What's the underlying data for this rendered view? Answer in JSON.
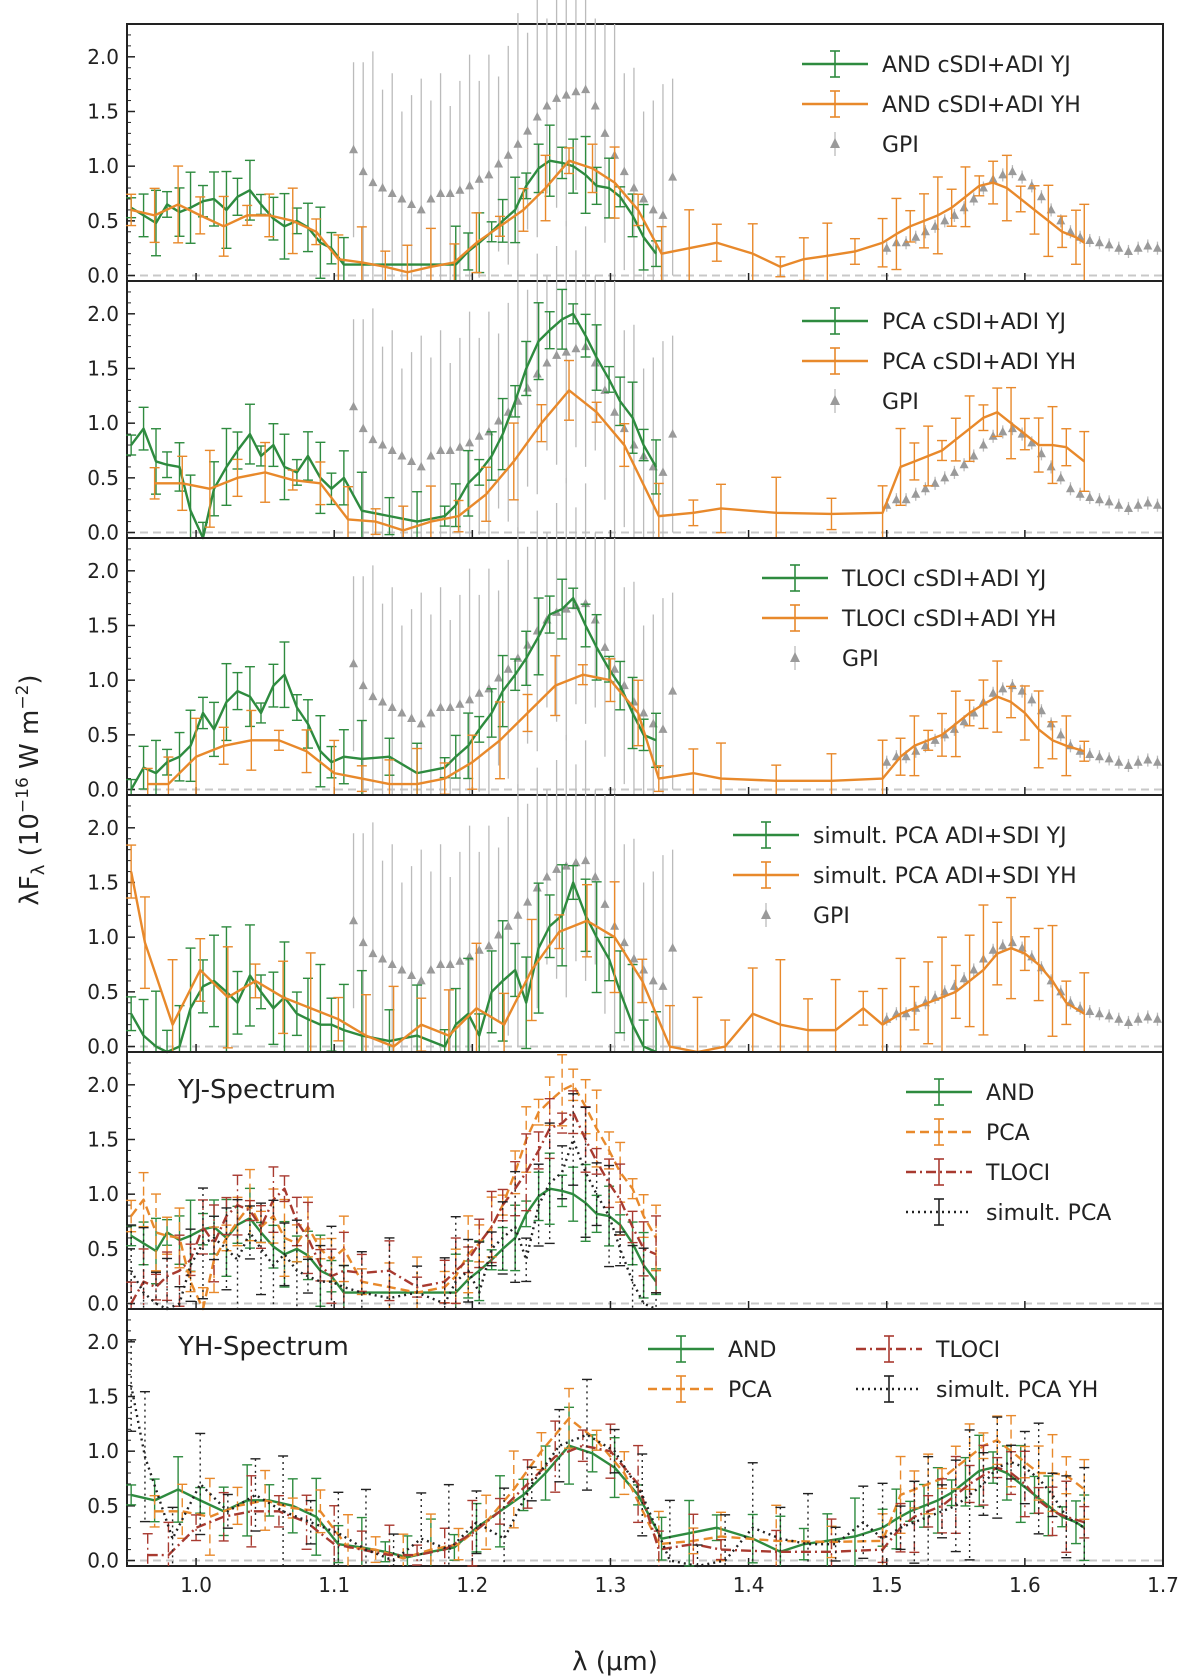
{
  "figure": {
    "xlabel": "λ (μm)",
    "ylabel": "λF_λ (10^-16 W m^-2)",
    "xlim": [
      0.95,
      1.7
    ],
    "ylim": [
      -0.05,
      2.3
    ],
    "xticks": [
      "1.0",
      "1.1",
      "1.2",
      "1.3",
      "1.4",
      "1.5",
      "1.6",
      "1.7"
    ],
    "yticks": [
      "0.0",
      "0.5",
      "1.0",
      "1.5",
      "2.0"
    ]
  },
  "colors": {
    "green": "#2e8b3f",
    "orange": "#e8892b",
    "gray": "#999999",
    "red": "#a83a30",
    "black": "#222222"
  },
  "chart_data": [
    {
      "type": "line",
      "panel": 1,
      "title": "",
      "legend_position": "top-right",
      "series": [
        {
          "name": "AND cSDI+ADI YJ",
          "color": "green",
          "style": "solid",
          "x": [
            0.953,
            0.962,
            0.971,
            0.979,
            0.988,
            0.996,
            1.005,
            1.013,
            1.022,
            1.03,
            1.039,
            1.047,
            1.056,
            1.064,
            1.073,
            1.081,
            1.09,
            1.098,
            1.107,
            1.188,
            1.197,
            1.205,
            1.214,
            1.222,
            1.231,
            1.239,
            1.248,
            1.256,
            1.265,
            1.273,
            1.282,
            1.29,
            1.299,
            1.307,
            1.316,
            1.324,
            1.333
          ],
          "y": [
            0.62,
            0.55,
            0.48,
            0.65,
            0.58,
            0.62,
            0.68,
            0.7,
            0.6,
            0.72,
            0.78,
            0.65,
            0.52,
            0.45,
            0.5,
            0.44,
            0.3,
            0.25,
            0.1,
            0.1,
            0.22,
            0.3,
            0.4,
            0.5,
            0.6,
            0.82,
            0.98,
            1.05,
            1.03,
            1.0,
            0.92,
            0.82,
            0.8,
            0.72,
            0.55,
            0.35,
            0.2
          ]
        },
        {
          "name": "AND cSDI+ADI YH",
          "color": "orange",
          "style": "solid",
          "x": [
            0.953,
            0.97,
            0.987,
            1.003,
            1.02,
            1.037,
            1.053,
            1.07,
            1.087,
            1.103,
            1.12,
            1.137,
            1.153,
            1.17,
            1.187,
            1.203,
            1.22,
            1.237,
            1.253,
            1.27,
            1.287,
            1.303,
            1.32,
            1.337,
            1.357,
            1.377,
            1.403,
            1.423,
            1.44,
            1.457,
            1.477,
            1.497,
            1.507,
            1.517,
            1.527,
            1.537,
            1.547,
            1.557,
            1.567,
            1.577,
            1.587,
            1.597,
            1.607,
            1.617,
            1.627,
            1.637,
            1.643
          ],
          "y": [
            0.6,
            0.55,
            0.65,
            0.55,
            0.45,
            0.55,
            0.55,
            0.5,
            0.4,
            0.15,
            0.12,
            0.08,
            0.03,
            0.08,
            0.12,
            0.3,
            0.45,
            0.6,
            0.8,
            1.05,
            0.98,
            0.85,
            0.6,
            0.2,
            0.25,
            0.3,
            0.2,
            0.08,
            0.15,
            0.18,
            0.22,
            0.3,
            0.38,
            0.45,
            0.5,
            0.55,
            0.62,
            0.72,
            0.82,
            0.85,
            0.8,
            0.7,
            0.6,
            0.5,
            0.4,
            0.35,
            0.3
          ]
        },
        {
          "name": "GPI",
          "color": "gray",
          "style": "marker",
          "x": [
            1.114,
            1.121,
            1.128,
            1.135,
            1.142,
            1.149,
            1.156,
            1.163,
            1.17,
            1.177,
            1.184,
            1.191,
            1.198,
            1.205,
            1.212,
            1.219,
            1.226,
            1.233,
            1.24,
            1.247,
            1.254,
            1.261,
            1.268,
            1.275,
            1.282,
            1.289,
            1.296,
            1.303,
            1.31,
            1.317,
            1.324,
            1.331,
            1.338,
            1.345,
            1.5,
            1.507,
            1.514,
            1.521,
            1.528,
            1.535,
            1.542,
            1.549,
            1.556,
            1.563,
            1.57,
            1.577,
            1.584,
            1.591,
            1.598,
            1.605,
            1.612,
            1.619,
            1.626,
            1.633,
            1.64,
            1.647,
            1.654,
            1.661,
            1.668,
            1.675,
            1.682,
            1.689,
            1.696
          ],
          "y": [
            1.15,
            0.95,
            0.85,
            0.8,
            0.75,
            0.7,
            0.65,
            0.6,
            0.7,
            0.75,
            0.75,
            0.78,
            0.82,
            0.88,
            0.92,
            1.02,
            1.1,
            1.2,
            1.32,
            1.45,
            1.55,
            1.62,
            1.65,
            1.68,
            1.7,
            1.55,
            1.3,
            1.1,
            0.95,
            0.8,
            0.7,
            0.6,
            0.55,
            0.9,
            0.25,
            0.3,
            0.3,
            0.35,
            0.4,
            0.45,
            0.5,
            0.55,
            0.62,
            0.7,
            0.8,
            0.88,
            0.92,
            0.95,
            0.9,
            0.82,
            0.72,
            0.6,
            0.5,
            0.4,
            0.35,
            0.32,
            0.3,
            0.28,
            0.25,
            0.22,
            0.25,
            0.27,
            0.25
          ]
        }
      ]
    },
    {
      "type": "line",
      "panel": 2,
      "title": "",
      "legend_position": "top-right",
      "series": [
        {
          "name": "PCA cSDI+ADI YJ",
          "color": "green",
          "style": "solid",
          "x": [
            0.953,
            0.962,
            0.971,
            0.979,
            0.988,
            0.996,
            1.005,
            1.013,
            1.022,
            1.03,
            1.039,
            1.047,
            1.056,
            1.064,
            1.073,
            1.081,
            1.09,
            1.098,
            1.107,
            1.12,
            1.14,
            1.16,
            1.18,
            1.188,
            1.197,
            1.205,
            1.214,
            1.222,
            1.231,
            1.239,
            1.248,
            1.256,
            1.265,
            1.273,
            1.282,
            1.29,
            1.299,
            1.307,
            1.316,
            1.324,
            1.333
          ],
          "y": [
            0.8,
            0.95,
            0.65,
            0.62,
            0.6,
            0.2,
            -0.05,
            0.4,
            0.6,
            0.75,
            0.9,
            0.7,
            0.8,
            0.6,
            0.55,
            0.7,
            0.5,
            0.4,
            0.5,
            0.2,
            0.15,
            0.1,
            0.15,
            0.25,
            0.45,
            0.55,
            0.7,
            0.9,
            1.2,
            1.5,
            1.75,
            1.85,
            1.95,
            2.0,
            1.8,
            1.6,
            1.4,
            1.2,
            1.05,
            0.8,
            0.6
          ]
        },
        {
          "name": "PCA cSDI+ADI YH",
          "color": "orange",
          "style": "solid",
          "x": [
            0.97,
            0.99,
            1.01,
            1.03,
            1.05,
            1.07,
            1.09,
            1.11,
            1.13,
            1.15,
            1.17,
            1.19,
            1.21,
            1.23,
            1.25,
            1.27,
            1.29,
            1.31,
            1.335,
            1.36,
            1.38,
            1.42,
            1.46,
            1.497,
            1.51,
            1.52,
            1.53,
            1.54,
            1.55,
            1.56,
            1.57,
            1.58,
            1.59,
            1.6,
            1.61,
            1.62,
            1.63,
            1.643
          ],
          "y": [
            0.45,
            0.45,
            0.4,
            0.5,
            0.55,
            0.48,
            0.45,
            0.12,
            0.1,
            0.02,
            0.1,
            0.15,
            0.35,
            0.65,
            1.0,
            1.3,
            1.1,
            0.8,
            0.15,
            0.18,
            0.22,
            0.18,
            0.17,
            0.18,
            0.6,
            0.65,
            0.7,
            0.75,
            0.85,
            0.95,
            1.05,
            1.1,
            1.0,
            0.9,
            0.8,
            0.8,
            0.78,
            0.65
          ]
        },
        {
          "name": "GPI",
          "color": "gray",
          "style": "marker",
          "same_as_panel": 1
        }
      ]
    },
    {
      "type": "line",
      "panel": 3,
      "title": "",
      "legend_position": "top-right",
      "series": [
        {
          "name": "TLOCI cSDI+ADI YJ",
          "color": "green",
          "style": "solid",
          "x": [
            0.953,
            0.962,
            0.971,
            0.979,
            0.988,
            0.996,
            1.005,
            1.013,
            1.022,
            1.03,
            1.039,
            1.047,
            1.056,
            1.064,
            1.073,
            1.081,
            1.09,
            1.098,
            1.107,
            1.12,
            1.14,
            1.16,
            1.18,
            1.188,
            1.197,
            1.205,
            1.214,
            1.222,
            1.231,
            1.239,
            1.248,
            1.256,
            1.265,
            1.273,
            1.282,
            1.29,
            1.299,
            1.307,
            1.316,
            1.324,
            1.333
          ],
          "y": [
            0.0,
            0.2,
            0.15,
            0.25,
            0.3,
            0.4,
            0.7,
            0.55,
            0.8,
            0.9,
            0.85,
            0.7,
            0.95,
            1.05,
            0.75,
            0.6,
            0.35,
            0.25,
            0.3,
            0.28,
            0.3,
            0.15,
            0.2,
            0.3,
            0.4,
            0.55,
            0.7,
            0.9,
            1.05,
            1.2,
            1.4,
            1.6,
            1.65,
            1.75,
            1.5,
            1.3,
            1.1,
            0.95,
            0.7,
            0.5,
            0.45
          ]
        },
        {
          "name": "TLOCI cSDI+ADI YH",
          "color": "orange",
          "style": "solid",
          "x": [
            0.965,
            0.98,
            1.0,
            1.02,
            1.04,
            1.06,
            1.08,
            1.1,
            1.12,
            1.14,
            1.16,
            1.18,
            1.2,
            1.22,
            1.24,
            1.26,
            1.28,
            1.3,
            1.32,
            1.335,
            1.36,
            1.38,
            1.42,
            1.46,
            1.497,
            1.51,
            1.52,
            1.53,
            1.54,
            1.55,
            1.56,
            1.57,
            1.58,
            1.59,
            1.6,
            1.61,
            1.62,
            1.63,
            1.643
          ],
          "y": [
            0.05,
            0.05,
            0.3,
            0.4,
            0.45,
            0.45,
            0.35,
            0.15,
            0.1,
            0.05,
            0.05,
            0.1,
            0.25,
            0.45,
            0.7,
            0.95,
            1.05,
            1.0,
            0.7,
            0.1,
            0.15,
            0.1,
            0.08,
            0.08,
            0.1,
            0.3,
            0.4,
            0.45,
            0.5,
            0.6,
            0.7,
            0.78,
            0.85,
            0.8,
            0.7,
            0.55,
            0.45,
            0.4,
            0.35
          ]
        },
        {
          "name": "GPI",
          "color": "gray",
          "style": "marker",
          "same_as_panel": 1
        }
      ]
    },
    {
      "type": "line",
      "panel": 4,
      "title": "",
      "legend_position": "top-right",
      "series": [
        {
          "name": "simult. PCA ADI+SDI YJ",
          "color": "green",
          "style": "solid",
          "x": [
            0.953,
            0.962,
            0.971,
            0.979,
            0.988,
            0.996,
            1.005,
            1.013,
            1.022,
            1.03,
            1.039,
            1.047,
            1.056,
            1.064,
            1.073,
            1.081,
            1.09,
            1.098,
            1.107,
            1.12,
            1.14,
            1.16,
            1.18,
            1.188,
            1.197,
            1.205,
            1.214,
            1.222,
            1.231,
            1.239,
            1.248,
            1.256,
            1.265,
            1.273,
            1.282,
            1.29,
            1.299,
            1.307,
            1.316,
            1.324,
            1.333
          ],
          "y": [
            0.3,
            0.1,
            0.0,
            -0.05,
            0.0,
            0.35,
            0.55,
            0.6,
            0.5,
            0.4,
            0.65,
            0.5,
            0.35,
            0.45,
            0.3,
            0.25,
            0.2,
            0.2,
            0.15,
            0.1,
            0.05,
            0.1,
            0.0,
            0.2,
            0.3,
            0.1,
            0.5,
            0.6,
            0.7,
            0.4,
            0.9,
            1.1,
            1.2,
            1.5,
            1.2,
            1.0,
            0.8,
            0.5,
            0.2,
            0.0,
            -0.1
          ]
        },
        {
          "name": "simult. PCA ADI+SDI YH",
          "color": "orange",
          "style": "solid",
          "x": [
            0.953,
            0.963,
            0.983,
            1.003,
            1.023,
            1.043,
            1.063,
            1.083,
            1.103,
            1.123,
            1.143,
            1.163,
            1.183,
            1.203,
            1.223,
            1.243,
            1.263,
            1.283,
            1.303,
            1.323,
            1.343,
            1.363,
            1.383,
            1.403,
            1.423,
            1.443,
            1.463,
            1.483,
            1.497,
            1.51,
            1.52,
            1.53,
            1.54,
            1.55,
            1.56,
            1.57,
            1.58,
            1.59,
            1.6,
            1.61,
            1.62,
            1.63,
            1.643
          ],
          "y": [
            1.6,
            0.95,
            0.2,
            0.7,
            0.45,
            0.6,
            0.45,
            0.35,
            0.25,
            0.1,
            0.0,
            0.2,
            0.1,
            0.35,
            0.2,
            0.7,
            1.05,
            1.15,
            1.0,
            0.6,
            0.0,
            -0.1,
            0.0,
            0.3,
            0.2,
            0.15,
            0.15,
            0.35,
            0.2,
            0.3,
            0.35,
            0.4,
            0.45,
            0.5,
            0.6,
            0.7,
            0.85,
            0.9,
            0.85,
            0.75,
            0.6,
            0.4,
            0.3
          ]
        },
        {
          "name": "GPI",
          "color": "gray",
          "style": "marker",
          "same_as_panel": 1
        }
      ]
    },
    {
      "type": "line",
      "panel": 5,
      "title": "YJ-Spectrum",
      "legend_position": "top-right",
      "series": [
        {
          "name": "AND",
          "color": "green",
          "style": "solid",
          "same_as": "AND cSDI+ADI YJ"
        },
        {
          "name": "PCA",
          "color": "orange",
          "style": "dashed",
          "same_as": "PCA cSDI+ADI YJ"
        },
        {
          "name": "TLOCI",
          "color": "red",
          "style": "dashdot",
          "same_as": "TLOCI cSDI+ADI YJ"
        },
        {
          "name": "simult. PCA",
          "color": "black",
          "style": "dotted",
          "same_as": "simult. PCA ADI+SDI YJ"
        }
      ]
    },
    {
      "type": "line",
      "panel": 6,
      "title": "YH-Spectrum",
      "legend_position": "top-right",
      "series": [
        {
          "name": "AND",
          "color": "green",
          "style": "solid",
          "same_as": "AND cSDI+ADI YH"
        },
        {
          "name": "PCA",
          "color": "orange",
          "style": "dashed",
          "same_as": "PCA cSDI+ADI YH"
        },
        {
          "name": "TLOCI",
          "color": "red",
          "style": "dashdot",
          "same_as": "TLOCI cSDI+ADI YH"
        },
        {
          "name": "simult. PCA YH",
          "color": "black",
          "style": "dotted",
          "same_as": "simult. PCA ADI+SDI YH"
        }
      ]
    }
  ]
}
